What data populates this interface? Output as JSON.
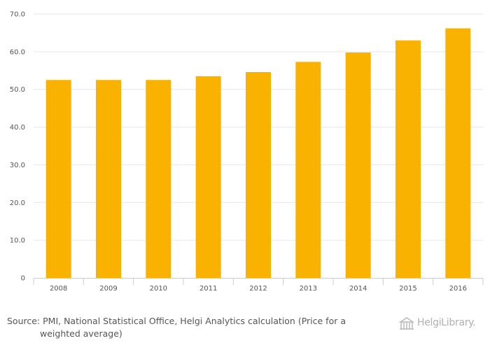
{
  "chart_data": {
    "type": "bar",
    "categories": [
      "2008",
      "2009",
      "2010",
      "2011",
      "2012",
      "2013",
      "2014",
      "2015",
      "2016"
    ],
    "values": [
      52.5,
      52.5,
      52.5,
      53.5,
      54.6,
      57.3,
      59.8,
      63.0,
      66.2
    ],
    "ylim": [
      0,
      70
    ],
    "yticks": [
      0,
      10,
      20,
      30,
      40,
      50,
      60,
      70
    ],
    "ytick_labels": [
      "0",
      "10.0",
      "20.0",
      "30.0",
      "40.0",
      "50.0",
      "60.0",
      "70.0"
    ],
    "grid": true,
    "legend": "none",
    "bar_color": "#f9b200"
  },
  "footer": {
    "source_line1": "Source: PMI, National Statistical Office, Helgi Analytics calculation (Price for a",
    "source_line2": "weighted average)",
    "logo_text": "HelgiLibrary."
  }
}
